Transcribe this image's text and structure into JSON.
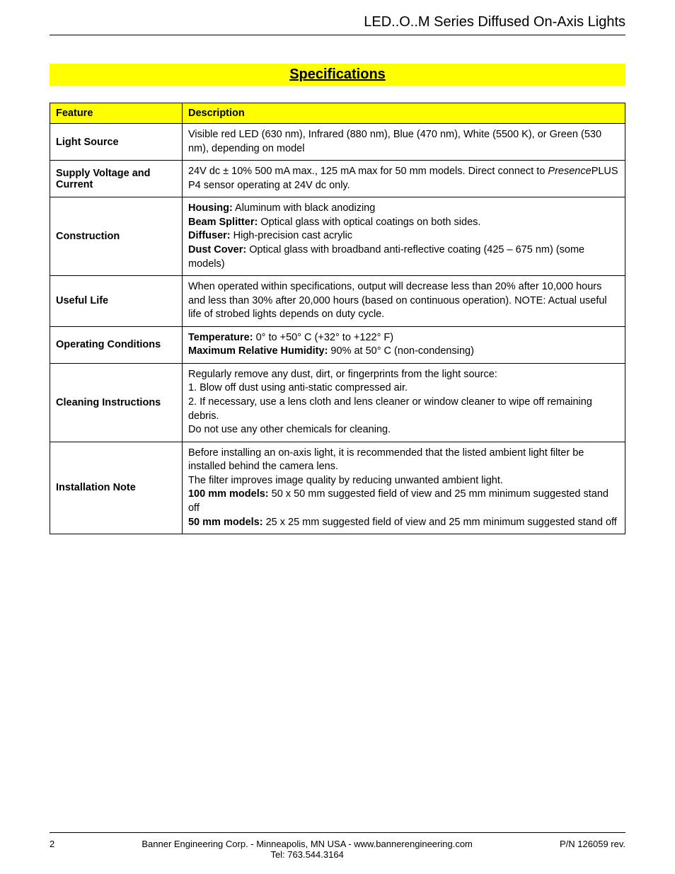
{
  "colors": {
    "banner_bg": "#ffff00",
    "page_bg": "#ffffff",
    "text": "#000000",
    "border": "#000000"
  },
  "header": {
    "title": "LED..O..M Series Diffused On-Axis Lights"
  },
  "section": {
    "title": "Specifications"
  },
  "table": {
    "columns": {
      "feature": "Feature",
      "description": "Description"
    },
    "rows": [
      {
        "feature": "Light Source",
        "description_html": "Visible red LED (630 nm), Infrared (880 nm), Blue (470 nm), White (5500 K), or Green (530 nm), depending on model",
        "pad": ""
      },
      {
        "feature": "Supply Voltage and Current",
        "description_html": "24V dc ± 10% 500 mA max., 125 mA max for 50 mm models. Direct connect to <i>Presence</i>PLUS P4 sensor operating at 24V dc only.",
        "pad": ""
      },
      {
        "feature": "Construction",
        "description_html": "<b>Housing:</b> Aluminum with black anodizing<br><b>Beam Splitter:</b> Optical glass with optical coatings on both sides.<br><b>Diffuser:</b> High-precision cast acrylic<br><b>Dust Cover:</b> Optical glass with broadband anti-reflective coating (425 – 675 nm) (some models)",
        "pad": "padded"
      },
      {
        "feature": "Useful Life",
        "description_html": "When operated within specifications, output will decrease less than 20% after 10,000 hours and less than 30% after 20,000 hours (based on continuous operation). NOTE: Actual useful life of strobed lights depends on duty cycle.",
        "pad": ""
      },
      {
        "feature": "Operating Conditions",
        "description_html": "<b>Temperature:</b> 0° to +50° C (+32° to +122° F)<br><b>Maximum Relative Humidity:</b> 90% at 50° C (non-condensing)",
        "pad": "padded"
      },
      {
        "feature": "Cleaning Instructions",
        "description_html": "Regularly remove any dust, dirt, or fingerprints from the light source:<br>1. Blow off dust using anti-static compressed air.<br>2. If necessary, use a lens cloth and lens cleaner or window cleaner to wipe off remaining debris.<br>Do not use any other chemicals for cleaning.",
        "pad": "padded-sm"
      },
      {
        "feature": "Installation Note",
        "description_html": "Before installing an on-axis light, it is recommended that the listed ambient light filter be installed behind the camera lens.<br>The filter improves image quality by reducing unwanted ambient light.<br><b>100 mm models:</b> 50 x 50 mm suggested field of view and 25 mm minimum suggested stand off<br><b>50 mm models:</b> 25 x 25 mm suggested field of view and 25 mm minimum suggested stand off",
        "pad": "padded-sm"
      }
    ]
  },
  "footer": {
    "page_number": "2",
    "center_line1": "Banner Engineering Corp. - Minneapolis, MN USA - www.bannerengineering.com",
    "center_line2": "Tel: 763.544.3164",
    "right": "P/N 126059 rev."
  }
}
